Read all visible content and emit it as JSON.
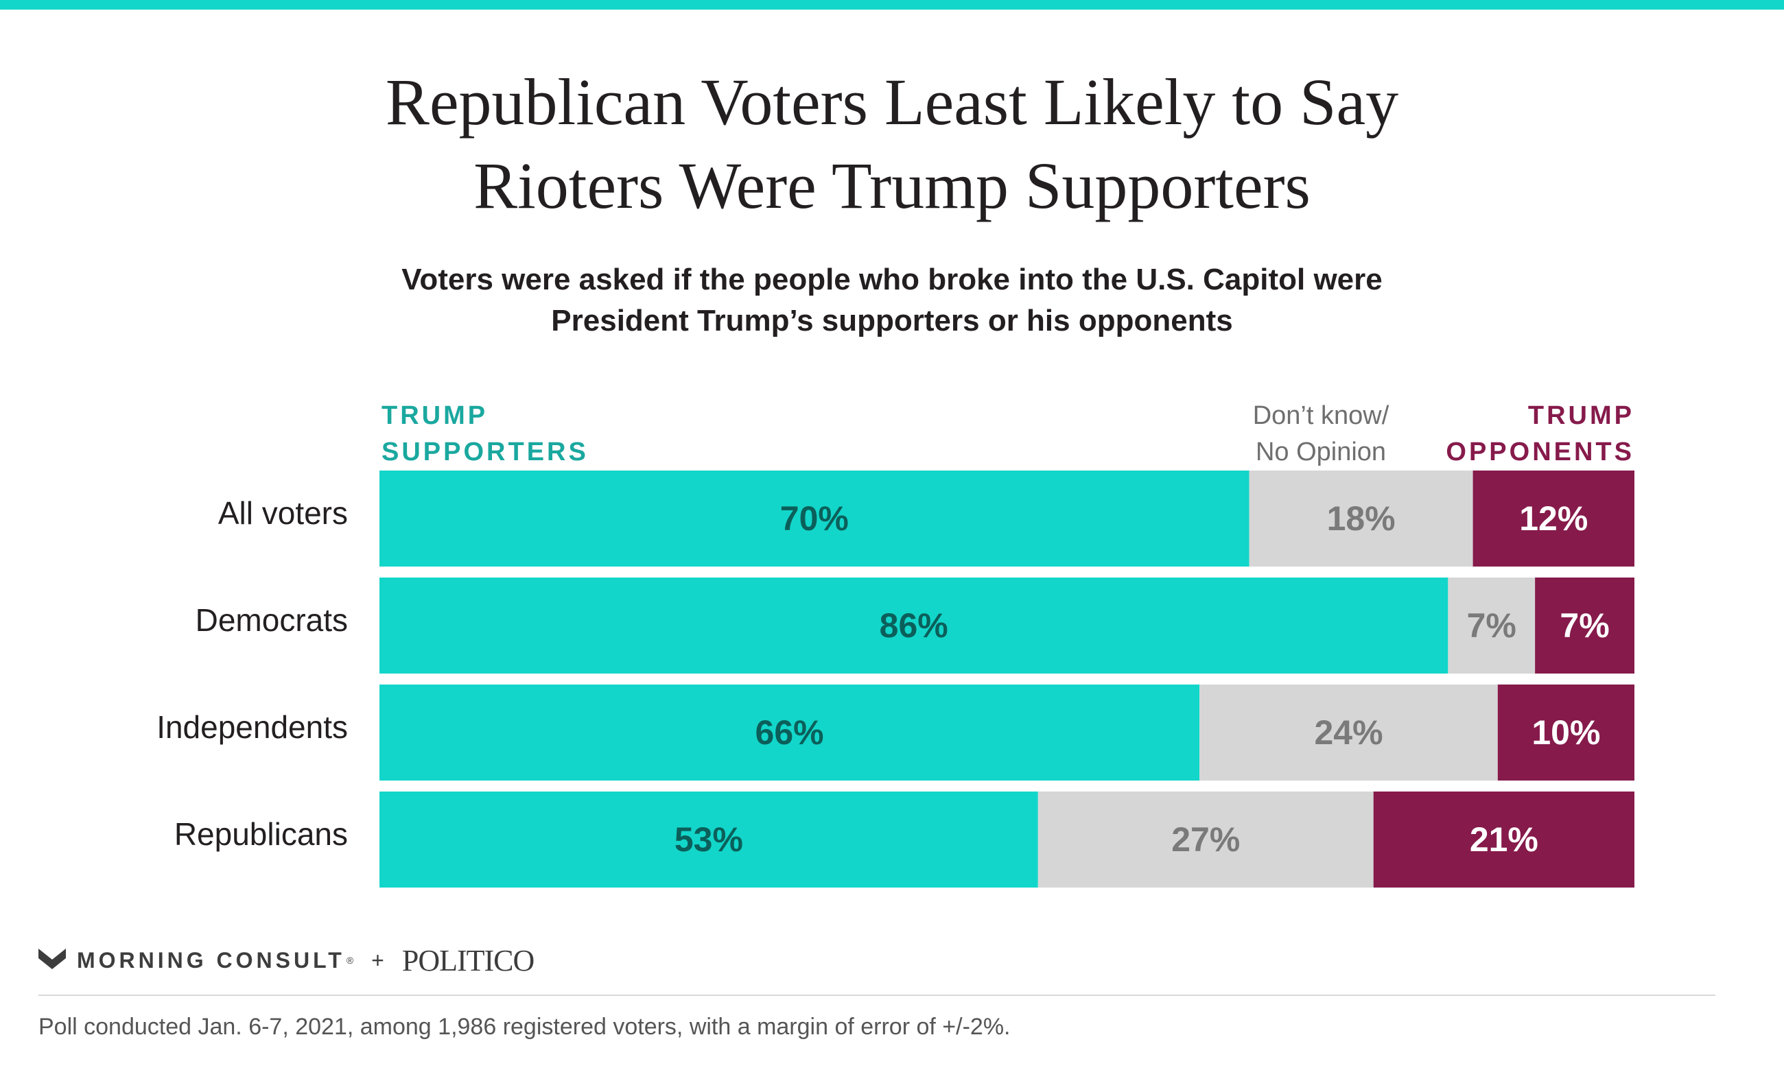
{
  "colors": {
    "accent_teal": "#13d6ca",
    "teal_label": "#1aa89f",
    "dark_teal_text": "#0b5f5a",
    "gray_segment": "#d6d6d6",
    "gray_text": "#7a7a7a",
    "maroon": "#861a4b",
    "white": "#ffffff"
  },
  "header": {
    "title_line1": "Republican Voters Least Likely to Say",
    "title_line2": "Rioters Were Trump Supporters",
    "subtitle_line1": "Voters were asked if the people who broke into the U.S. Capitol were",
    "subtitle_line2": "President Trump’s supporters or his opponents"
  },
  "legend": {
    "supporters_line1": "TRUMP",
    "supporters_line2": "SUPPORTERS",
    "dont_know_line1": "Don’t know/",
    "dont_know_line2": "No Opinion",
    "opponents_line1": "TRUMP",
    "opponents_line2": "OPPONENTS"
  },
  "chart_data": {
    "type": "bar",
    "orientation": "horizontal",
    "stacked": true,
    "normalized": true,
    "categories": [
      "All voters",
      "Democrats",
      "Independents",
      "Republicans"
    ],
    "series": [
      {
        "name": "TRUMP SUPPORTERS",
        "values": [
          70,
          86,
          66,
          53
        ],
        "labels": [
          "70%",
          "86%",
          "66%",
          "53%"
        ],
        "color": "#13d6ca"
      },
      {
        "name": "Don’t know/ No Opinion",
        "values": [
          18,
          7,
          24,
          27
        ],
        "labels": [
          "18%",
          "7%",
          "24%",
          "27%"
        ],
        "color": "#d6d6d6"
      },
      {
        "name": "TRUMP OPPONENTS",
        "values": [
          12,
          7,
          10,
          21
        ],
        "labels": [
          "12%",
          "7%",
          "10%",
          "21%"
        ],
        "color": "#861a4b"
      }
    ],
    "xlim": [
      0,
      101
    ],
    "grid": false,
    "legend": "top"
  },
  "footer": {
    "brand1": "MORNING CONSULT",
    "registered_mark": "®",
    "plus": "+",
    "brand2": "POLITICO",
    "note": "Poll conducted Jan. 6-7, 2021, among 1,986 registered voters, with a margin of error of +/-2%."
  }
}
